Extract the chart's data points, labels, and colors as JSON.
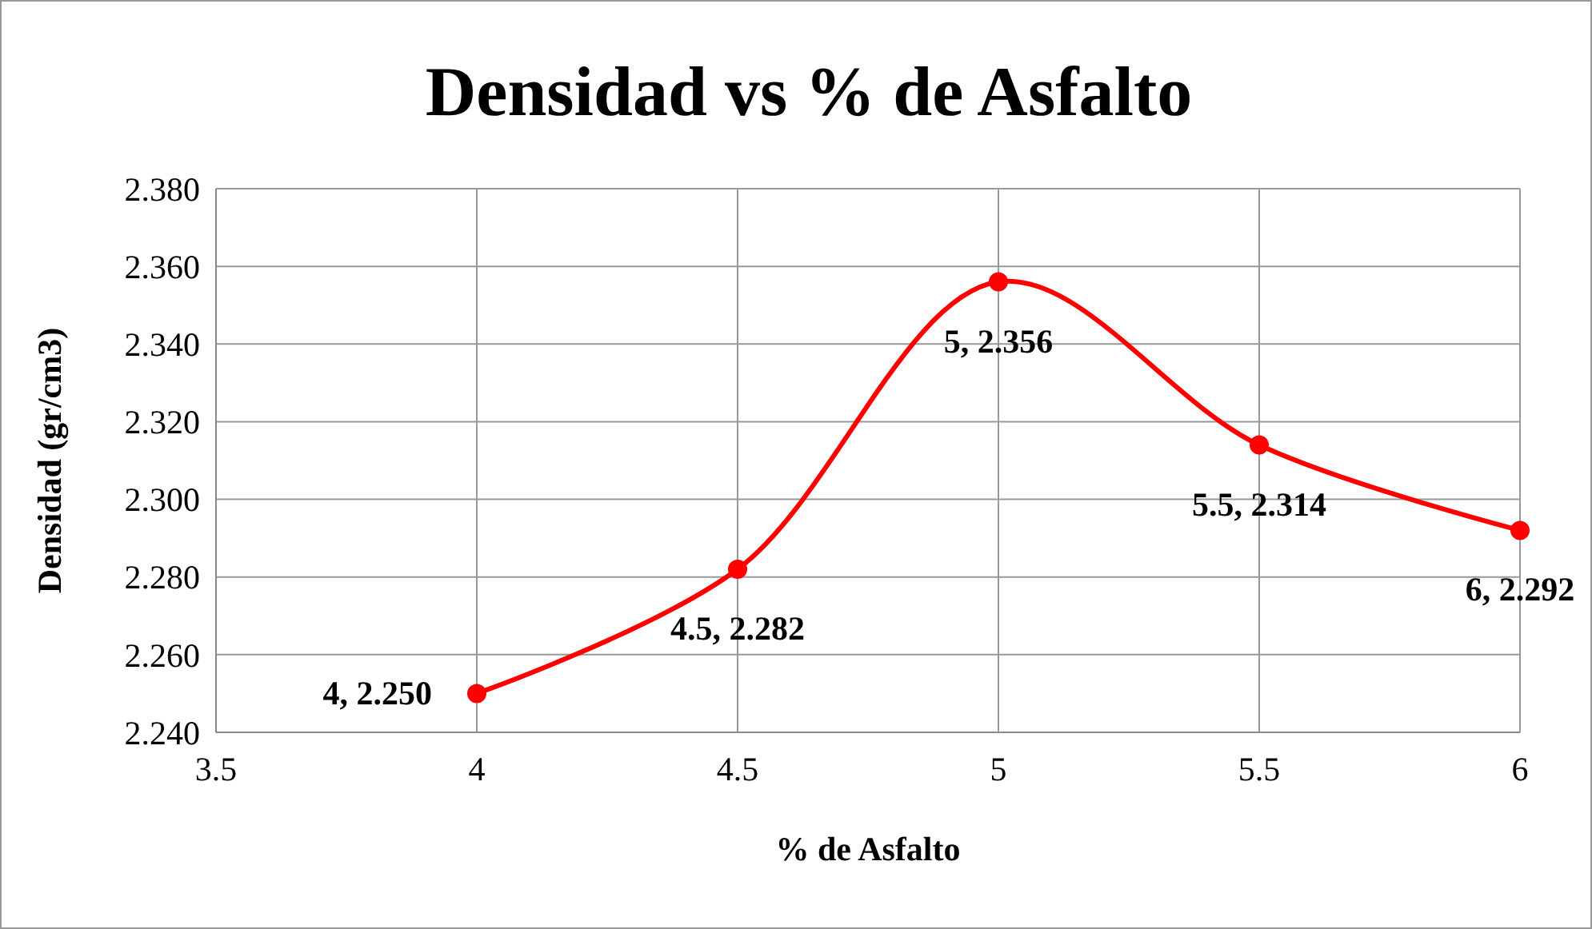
{
  "chart_data": {
    "type": "line",
    "title": "Densidad vs % de Asfalto",
    "xlabel": "% de Asfalto",
    "ylabel": "Densidad (gr/cm3)",
    "x": [
      4,
      4.5,
      5,
      5.5,
      6
    ],
    "series": [
      {
        "color": "#ff0000",
        "values": [
          2.25,
          2.282,
          2.356,
          2.314,
          2.292
        ],
        "value_labels": [
          "4, 2.250",
          "4.5, 2.282",
          "5, 2.356",
          "5.5, 2.314",
          "6, 2.292"
        ]
      }
    ],
    "xlim": [
      3.5,
      6
    ],
    "xticks": [
      3.5,
      4,
      4.5,
      5,
      5.5,
      6
    ],
    "ylim": [
      2.24,
      2.38
    ],
    "yticks": [
      {
        "value": 2.24,
        "label": "2.240"
      },
      {
        "value": 2.26,
        "label": "2.260"
      },
      {
        "value": 2.28,
        "label": "2.280"
      },
      {
        "value": 2.3,
        "label": "2.300"
      },
      {
        "value": 2.32,
        "label": "2.320"
      },
      {
        "value": 2.34,
        "label": "2.340"
      },
      {
        "value": 2.36,
        "label": "2.360"
      },
      {
        "value": 2.38,
        "label": "2.380"
      }
    ],
    "grid": true,
    "marker": "circle",
    "line_style": "solid"
  }
}
